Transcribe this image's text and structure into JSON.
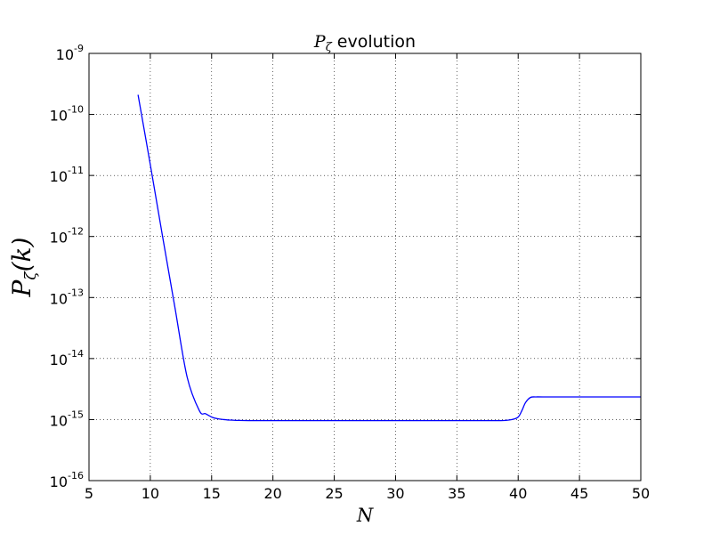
{
  "chart_data": {
    "type": "line",
    "title": {
      "symbol": "P",
      "subscript": "ζ",
      "suffix": " evolution"
    },
    "xlabel": "N",
    "ylabel": {
      "symbol": "P",
      "subscript": "ζ",
      "argument": "(k)"
    },
    "xlim": [
      5,
      50
    ],
    "ylim": [
      1e-16,
      1e-09
    ],
    "yscale": "log",
    "grid": true,
    "x_ticks": [
      5,
      10,
      15,
      20,
      25,
      30,
      35,
      40,
      45,
      50
    ],
    "y_tick_exponents": [
      -16,
      -15,
      -14,
      -13,
      -12,
      -11,
      -10,
      -9
    ],
    "y_tick_base": "10",
    "series": [
      {
        "color": "#0000ff",
        "x": [
          9.0,
          10.0,
          11.0,
          12.0,
          13.0,
          14.0,
          14.5,
          15.0,
          15.5,
          16.0,
          16.5,
          17.0,
          18.0,
          20.0,
          25.0,
          30.0,
          35.0,
          38.0,
          39.0,
          39.5,
          40.0,
          40.3,
          40.6,
          41.0,
          41.5,
          42.0,
          45.0,
          50.0
        ],
        "y": [
          2.1e-10,
          1.5e-11,
          1e-12,
          7e-14,
          5e-15,
          1.4e-15,
          1.25e-15,
          1.1e-15,
          1.03e-15,
          1e-15,
          9.8e-16,
          9.7e-16,
          9.6e-16,
          9.6e-16,
          9.6e-16,
          9.6e-16,
          9.6e-16,
          9.6e-16,
          9.7e-16,
          1e-15,
          1.1e-15,
          1.4e-15,
          1.9e-15,
          2.3e-15,
          2.35e-15,
          2.35e-15,
          2.35e-15,
          2.35e-15
        ]
      }
    ]
  }
}
